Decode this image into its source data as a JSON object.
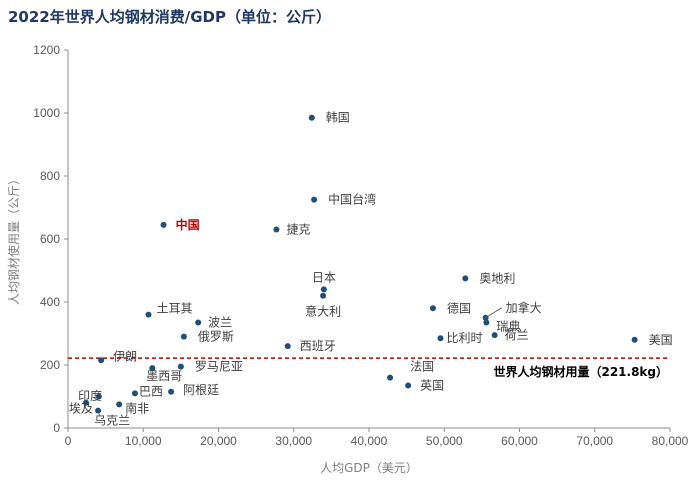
{
  "colors": {
    "title": "#1f3864",
    "marker": "#1f4e79",
    "highlight": "#c00000",
    "reference_line": "#c00000"
  },
  "chart_data": {
    "type": "scatter",
    "title": "2022年世界人均钢材消费/GDP（单位：公斤）",
    "xlabel": "人均GDP（美元）",
    "ylabel": "人均钢材使用量（公斤）",
    "xlim": [
      0,
      80000
    ],
    "ylim": [
      0,
      1200
    ],
    "x_ticks": [
      "0",
      "10,000",
      "20,000",
      "30,000",
      "40,000",
      "50,000",
      "60,000",
      "70,000",
      "80,000"
    ],
    "y_ticks": [
      "0",
      "200",
      "400",
      "600",
      "800",
      "1000",
      "1200"
    ],
    "grid": false,
    "reference_line": {
      "y": 221.8,
      "label": "世界人均钢材用量（221.8kg）"
    },
    "points": [
      {
        "name": "韩国",
        "x": 32400,
        "y": 985
      },
      {
        "name": "中国台湾",
        "x": 32700,
        "y": 725
      },
      {
        "name": "中国",
        "x": 12700,
        "y": 645,
        "highlight": true
      },
      {
        "name": "捷克",
        "x": 27700,
        "y": 630
      },
      {
        "name": "日本",
        "x": 34000,
        "y": 440
      },
      {
        "name": "意大利",
        "x": 33900,
        "y": 420
      },
      {
        "name": "奥地利",
        "x": 52800,
        "y": 475
      },
      {
        "name": "德国",
        "x": 48500,
        "y": 380
      },
      {
        "name": "加拿大",
        "x": 55500,
        "y": 350
      },
      {
        "name": "瑞典",
        "x": 55600,
        "y": 335
      },
      {
        "name": "比利时",
        "x": 49500,
        "y": 285
      },
      {
        "name": "荷兰",
        "x": 56700,
        "y": 295
      },
      {
        "name": "美国",
        "x": 75300,
        "y": 280
      },
      {
        "name": "土耳其",
        "x": 10700,
        "y": 360
      },
      {
        "name": "波兰",
        "x": 17300,
        "y": 335
      },
      {
        "name": "俄罗斯",
        "x": 15400,
        "y": 290
      },
      {
        "name": "西班牙",
        "x": 29200,
        "y": 260
      },
      {
        "name": "伊朗",
        "x": 4400,
        "y": 215
      },
      {
        "name": "罗马尼亚",
        "x": 15000,
        "y": 195
      },
      {
        "name": "墨西哥",
        "x": 11200,
        "y": 190
      },
      {
        "name": "法国",
        "x": 42800,
        "y": 160
      },
      {
        "name": "英国",
        "x": 45200,
        "y": 135
      },
      {
        "name": "印度",
        "x": 2400,
        "y": 80
      },
      {
        "name": "埃及",
        "x": 4100,
        "y": 100
      },
      {
        "name": "巴西",
        "x": 8900,
        "y": 110
      },
      {
        "name": "阿根廷",
        "x": 13700,
        "y": 115
      },
      {
        "name": "南非",
        "x": 6800,
        "y": 75
      },
      {
        "name": "乌克兰",
        "x": 4000,
        "y": 55
      }
    ]
  }
}
